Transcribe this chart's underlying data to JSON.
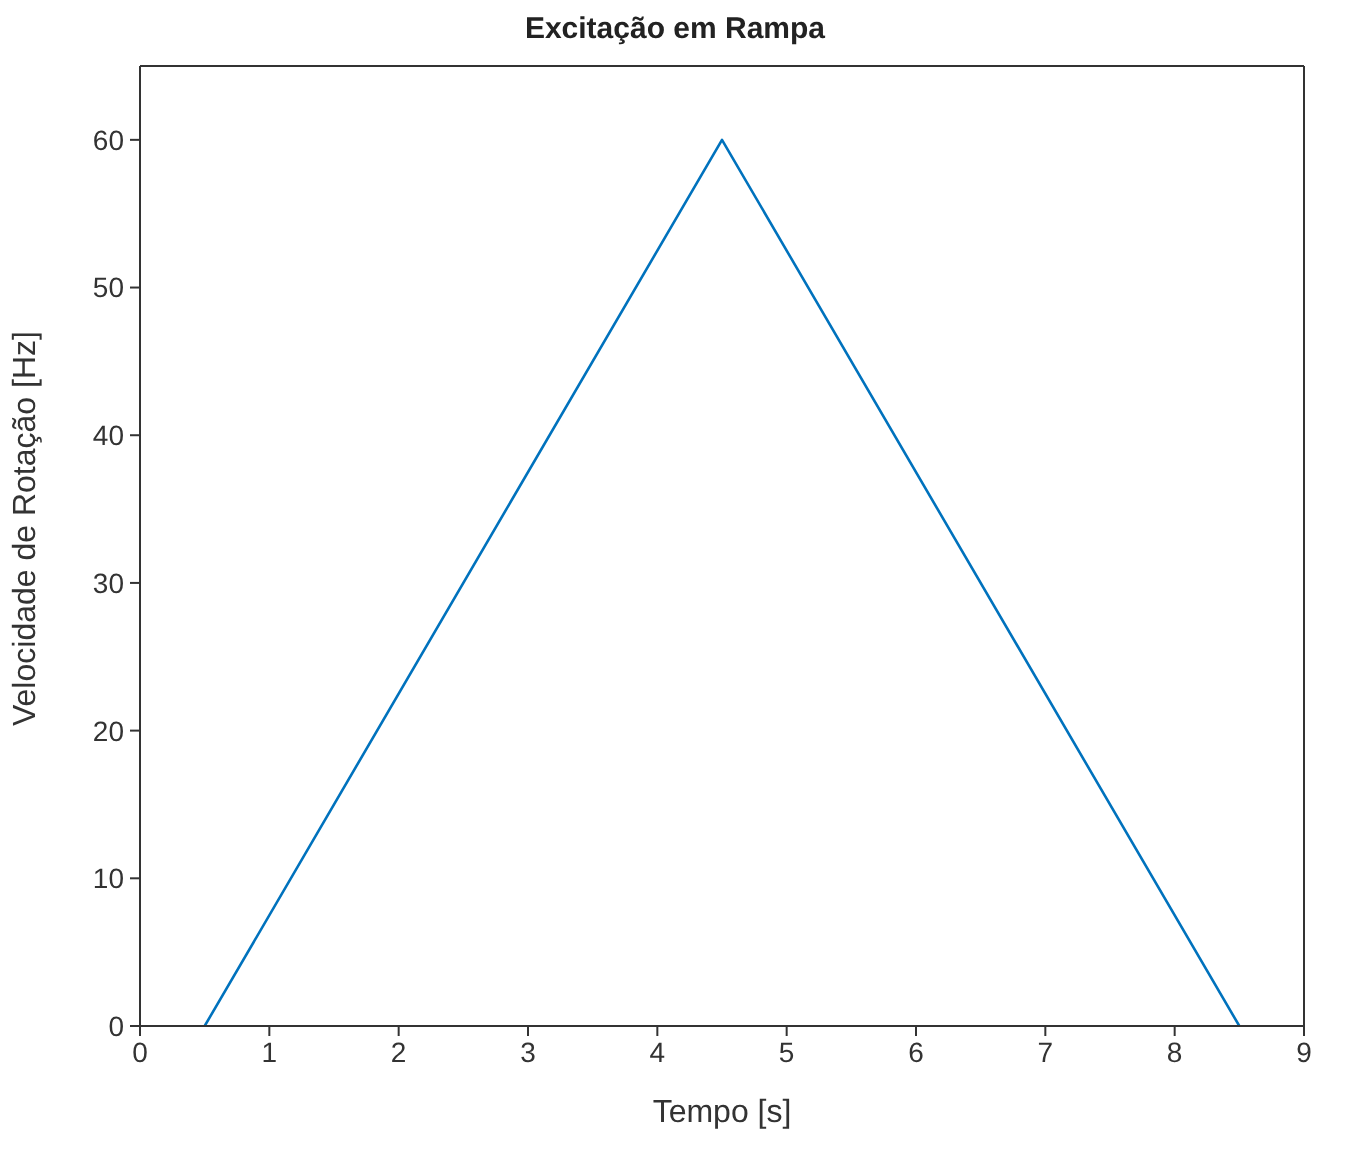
{
  "chart_data": {
    "type": "line",
    "title": "Excitação em Rampa",
    "xlabel": "Tempo [s]",
    "ylabel": "Velocidade de Rotação [Hz]",
    "x": [
      0.5,
      4.5,
      8.5
    ],
    "series": [
      {
        "color": "#0072bd",
        "values": [
          0,
          60,
          0
        ]
      }
    ],
    "xlim": [
      0,
      9
    ],
    "xticks": [
      0,
      1,
      2,
      3,
      4,
      5,
      6,
      7,
      8,
      9
    ],
    "ylim": [
      0,
      65
    ],
    "yticks": [
      0,
      10,
      20,
      30,
      40,
      50,
      60
    ],
    "grid": false,
    "legend": false,
    "marker": "none",
    "line_style": "solid"
  }
}
